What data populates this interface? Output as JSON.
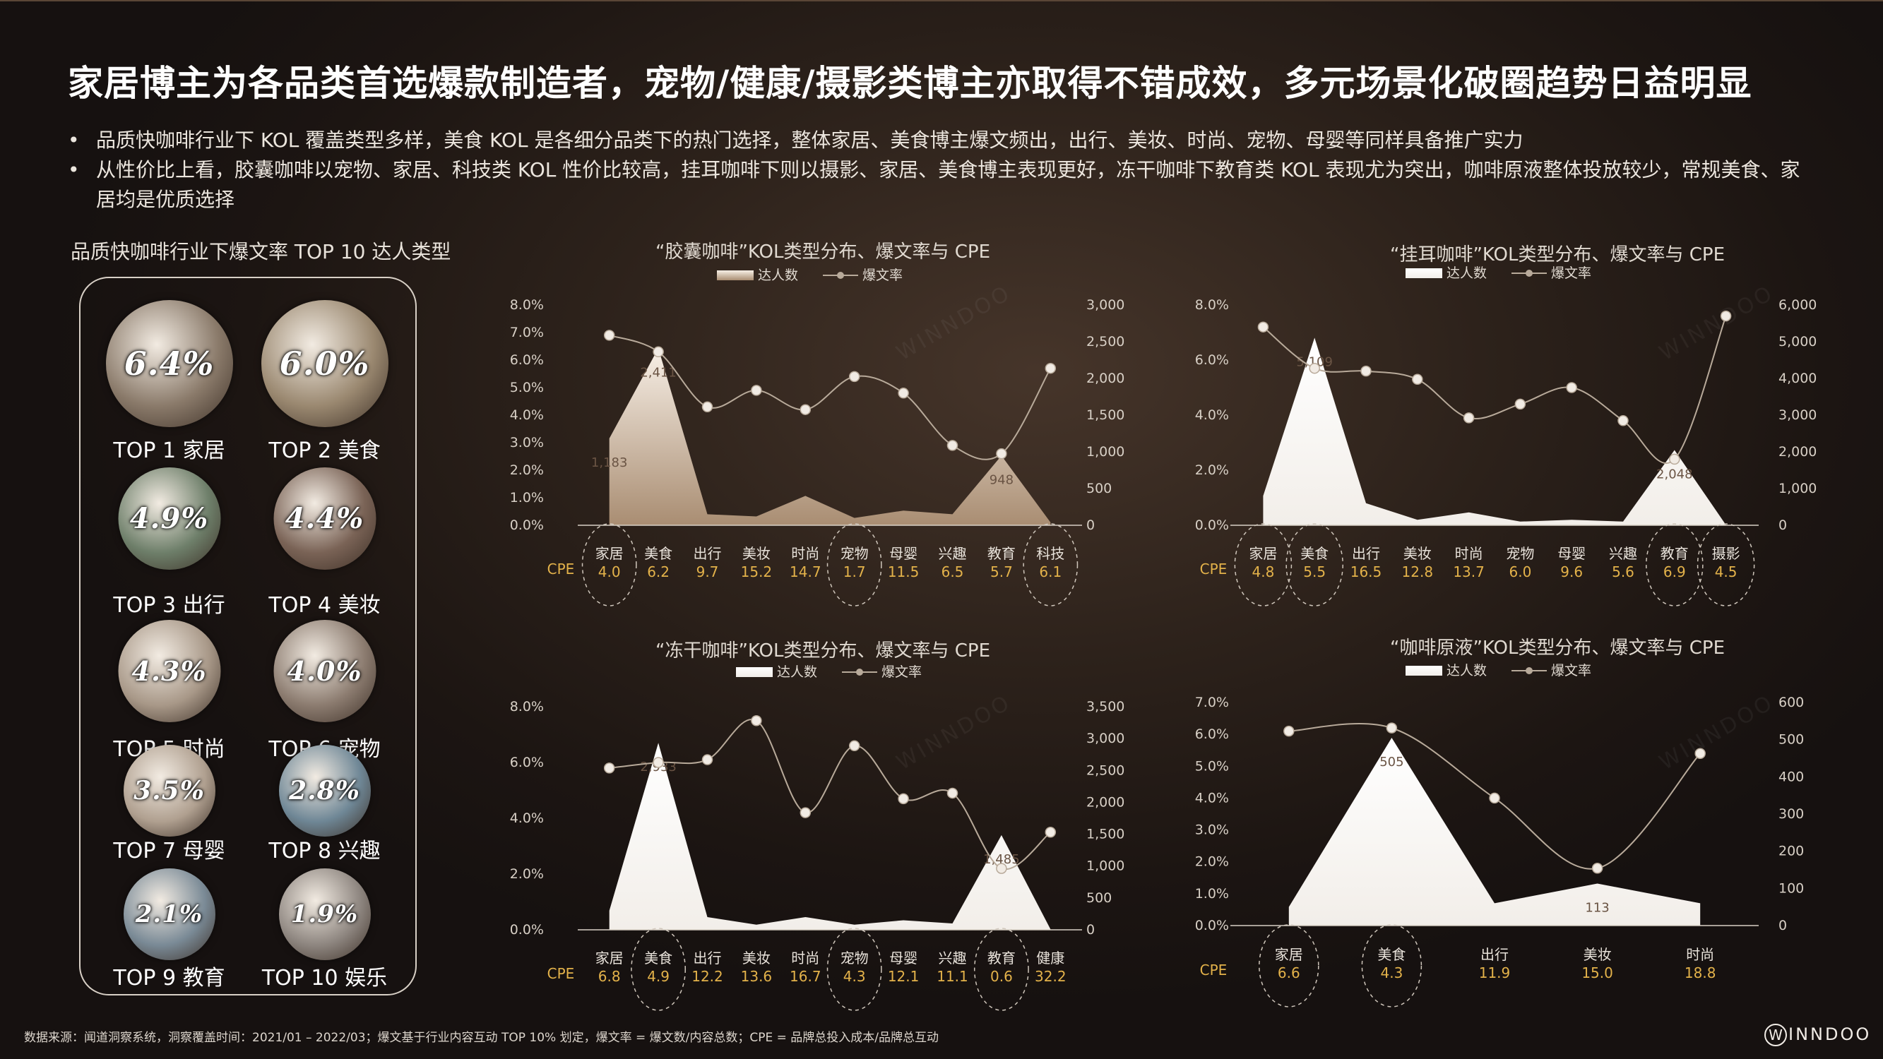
{
  "title": "家居博主为各品类首选爆款制造者，宠物/健康/摄影类博主亦取得不错成效，多元场景化破圈趋势日益明显",
  "bullets": [
    "品质快咖啡行业下 KOL 覆盖类型多样，美食 KOL 是各细分品类下的热门选择，整体家居、美食博主爆文频出，出行、美妆、时尚、宠物、母婴等同样具备推广实力",
    "从性价比上看，胶囊咖啡以宠物、家居、科技类 KOL 性价比较高，挂耳咖啡下则以摄影、家居、美食博主表现更好，冻干咖啡下教育类 KOL 表现尤为突出，咖啡原液整体投放较少，常规美食、家居均是优质选择"
  ],
  "top10": {
    "title": "品质快咖啡行业下爆文率 TOP 10 达人类型",
    "items": [
      {
        "rate": "6.4%",
        "label": "TOP 1 家居",
        "color": "#8a7a6a"
      },
      {
        "rate": "6.0%",
        "label": "TOP 2 美食",
        "color": "#9a8870"
      },
      {
        "rate": "4.9%",
        "label": "TOP 3 出行",
        "color": "#6e7f6a"
      },
      {
        "rate": "4.4%",
        "label": "TOP 4 美妆",
        "color": "#7a6356"
      },
      {
        "rate": "4.3%",
        "label": "TOP 5 时尚",
        "color": "#a89888"
      },
      {
        "rate": "4.0%",
        "label": "TOP 6 宠物",
        "color": "#8c7c70"
      },
      {
        "rate": "3.5%",
        "label": "TOP 7 母婴",
        "color": "#b0a090"
      },
      {
        "rate": "2.8%",
        "label": "TOP 8 兴趣",
        "color": "#6f8796"
      },
      {
        "rate": "2.1%",
        "label": "TOP 9 教育",
        "color": "#7a8a96"
      },
      {
        "rate": "1.9%",
        "label": "TOP 10 娱乐",
        "color": "#8e8680"
      }
    ]
  },
  "legend": {
    "count": "达人数",
    "rate": "爆文率"
  },
  "cpe_label": "CPE",
  "chart_data": [
    {
      "type": "area+line",
      "title": "“胶囊咖啡”KOL类型分布、爆文率与 CPE",
      "fill": "gradient",
      "categories": [
        "家居",
        "美食",
        "出行",
        "美妆",
        "时尚",
        "宠物",
        "母婴",
        "兴趣",
        "教育",
        "科技"
      ],
      "count": [
        1183,
        2411,
        150,
        120,
        400,
        100,
        200,
        150,
        948,
        40
      ],
      "count_labels": [
        "1,183",
        "2,411",
        "",
        "",
        "",
        "",
        "",
        "",
        "948",
        ""
      ],
      "rate": [
        6.9,
        6.3,
        4.3,
        4.9,
        4.2,
        5.4,
        4.8,
        2.9,
        2.6,
        5.7
      ],
      "cpe": [
        "4.0",
        "6.2",
        "9.7",
        "15.2",
        "14.7",
        "1.7",
        "11.5",
        "6.5",
        "5.7",
        "6.1"
      ],
      "circled": [
        0,
        5,
        9
      ],
      "ylim_left": [
        0,
        8
      ],
      "yticks_left": [
        "0.0%",
        "1.0%",
        "2.0%",
        "3.0%",
        "4.0%",
        "5.0%",
        "6.0%",
        "7.0%",
        "8.0%"
      ],
      "ylim_right": [
        0,
        3000
      ],
      "yticks_right": [
        "0",
        "500",
        "1,000",
        "1,500",
        "2,000",
        "2,500",
        "3,000"
      ]
    },
    {
      "type": "area+line",
      "title": "“挂耳咖啡”KOL类型分布、爆文率与 CPE",
      "fill": "white",
      "categories": [
        "家居",
        "美食",
        "出行",
        "美妆",
        "时尚",
        "宠物",
        "母婴",
        "兴趣",
        "教育",
        "摄影"
      ],
      "count": [
        800,
        5109,
        600,
        150,
        350,
        100,
        150,
        100,
        2048,
        10
      ],
      "count_labels": [
        "",
        "5,109",
        "",
        "",
        "",
        "",
        "",
        "",
        "2,048",
        ""
      ],
      "rate": [
        7.2,
        5.7,
        5.6,
        5.3,
        3.9,
        4.4,
        5.0,
        3.8,
        2.4,
        7.6
      ],
      "cpe": [
        "4.8",
        "5.5",
        "16.5",
        "12.8",
        "13.7",
        "6.0",
        "9.6",
        "5.6",
        "6.9",
        "4.5"
      ],
      "circled": [
        0,
        1,
        8,
        9
      ],
      "ylim_left": [
        0,
        8
      ],
      "yticks_left": [
        "0.0%",
        "2.0%",
        "4.0%",
        "6.0%",
        "8.0%"
      ],
      "ylim_right": [
        0,
        6000
      ],
      "yticks_right": [
        "0",
        "1,000",
        "2,000",
        "3,000",
        "4,000",
        "5,000",
        "6,000"
      ]
    },
    {
      "type": "area+line",
      "title": "“冻干咖啡”KOL类型分布、爆文率与 CPE",
      "fill": "white",
      "categories": [
        "家居",
        "美食",
        "出行",
        "美妆",
        "时尚",
        "宠物",
        "母婴",
        "兴趣",
        "教育",
        "健康"
      ],
      "count": [
        300,
        2933,
        200,
        80,
        200,
        80,
        150,
        100,
        1485,
        10
      ],
      "count_labels": [
        "",
        "2,933",
        "",
        "",
        "",
        "",
        "",
        "",
        "1,485",
        ""
      ],
      "rate": [
        5.8,
        6.0,
        6.1,
        7.5,
        4.2,
        6.6,
        4.7,
        4.9,
        2.2,
        3.5
      ],
      "cpe": [
        "6.8",
        "4.9",
        "12.2",
        "13.6",
        "16.7",
        "4.3",
        "12.1",
        "11.1",
        "0.6",
        "32.2"
      ],
      "circled": [
        1,
        5,
        8
      ],
      "ylim_left": [
        0,
        8
      ],
      "yticks_left": [
        "0.0%",
        "2.0%",
        "4.0%",
        "6.0%",
        "8.0%"
      ],
      "ylim_right": [
        0,
        3500
      ],
      "yticks_right": [
        "0",
        "500",
        "1,000",
        "1,500",
        "2,000",
        "2,500",
        "3,000",
        "3,500"
      ]
    },
    {
      "type": "area+line",
      "title": "“咖啡原液”KOL类型分布、爆文率与 CPE",
      "fill": "white",
      "categories": [
        "家居",
        "美食",
        "出行",
        "美妆",
        "时尚"
      ],
      "count": [
        50,
        505,
        60,
        113,
        60
      ],
      "count_labels": [
        "",
        "505",
        "",
        "113",
        ""
      ],
      "rate": [
        6.1,
        6.2,
        4.0,
        1.8,
        5.4
      ],
      "cpe": [
        "6.6",
        "4.3",
        "11.9",
        "15.0",
        "18.8"
      ],
      "circled": [
        0,
        1
      ],
      "ylim_left": [
        0,
        7
      ],
      "yticks_left": [
        "0.0%",
        "1.0%",
        "2.0%",
        "3.0%",
        "4.0%",
        "5.0%",
        "6.0%",
        "7.0%"
      ],
      "ylim_right": [
        0,
        600
      ],
      "yticks_right": [
        "0",
        "100",
        "200",
        "300",
        "400",
        "500",
        "600"
      ]
    }
  ],
  "footer": "数据来源：闻道洞察系统，洞察覆盖时间：2021/01 – 2022/03；爆文基于行业内容互动 TOP 10% 划定，爆文率 = 爆文数/内容总数；CPE = 品牌总投入成本/品牌总互动",
  "logo": {
    "mark": "W",
    "text": "INNDOO"
  },
  "colors": {
    "cpe": "#e3b24a",
    "line": "#b8aa9a",
    "axis": "#d8d0c6"
  }
}
